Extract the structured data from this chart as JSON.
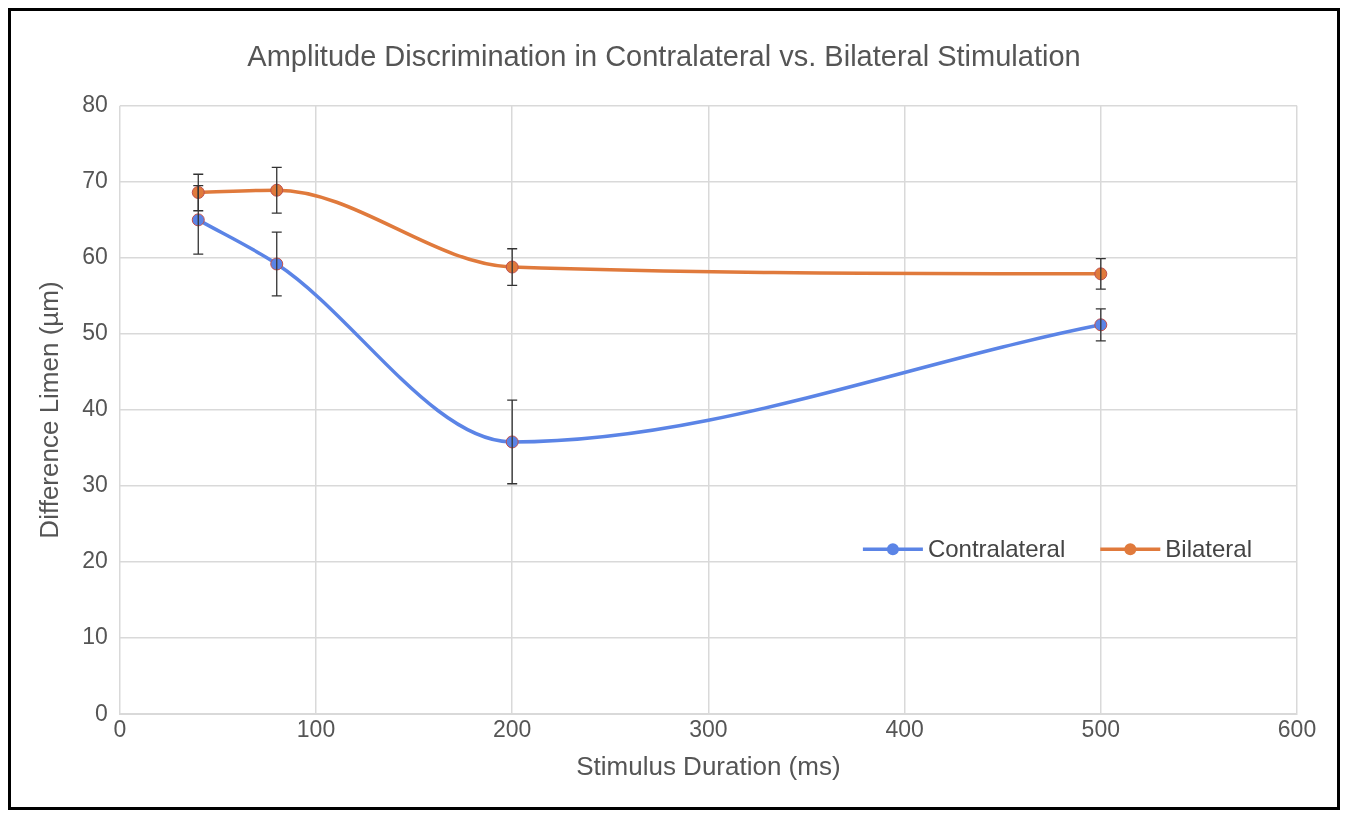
{
  "chart_data": {
    "type": "line",
    "title": "Amplitude Discrimination in Contralateral vs. Bilateral Stimulation",
    "xlabel": "Stimulus Duration (ms)",
    "ylabel": "Difference Limen (µm)",
    "x": [
      40,
      80,
      200,
      500
    ],
    "xlim": [
      0,
      600
    ],
    "xticks": [
      0,
      100,
      200,
      300,
      400,
      500,
      600
    ],
    "ylim": [
      0,
      80
    ],
    "yticks": [
      0,
      10,
      20,
      30,
      40,
      50,
      60,
      70,
      80
    ],
    "grid": true,
    "legend": "bottom right",
    "marker": "circle",
    "line_style": "solid",
    "series": [
      {
        "name": "Contralateral",
        "color": "#5b84e6",
        "values": [
          65,
          59.2,
          35.8,
          51.2
        ],
        "errors": [
          4.5,
          4.2,
          5.5,
          2.1
        ]
      },
      {
        "name": "Bilateral",
        "color": "#e07a3c",
        "values": [
          68.6,
          68.9,
          58.8,
          57.9
        ],
        "errors": [
          2.4,
          3,
          2.4,
          2
        ]
      }
    ]
  }
}
